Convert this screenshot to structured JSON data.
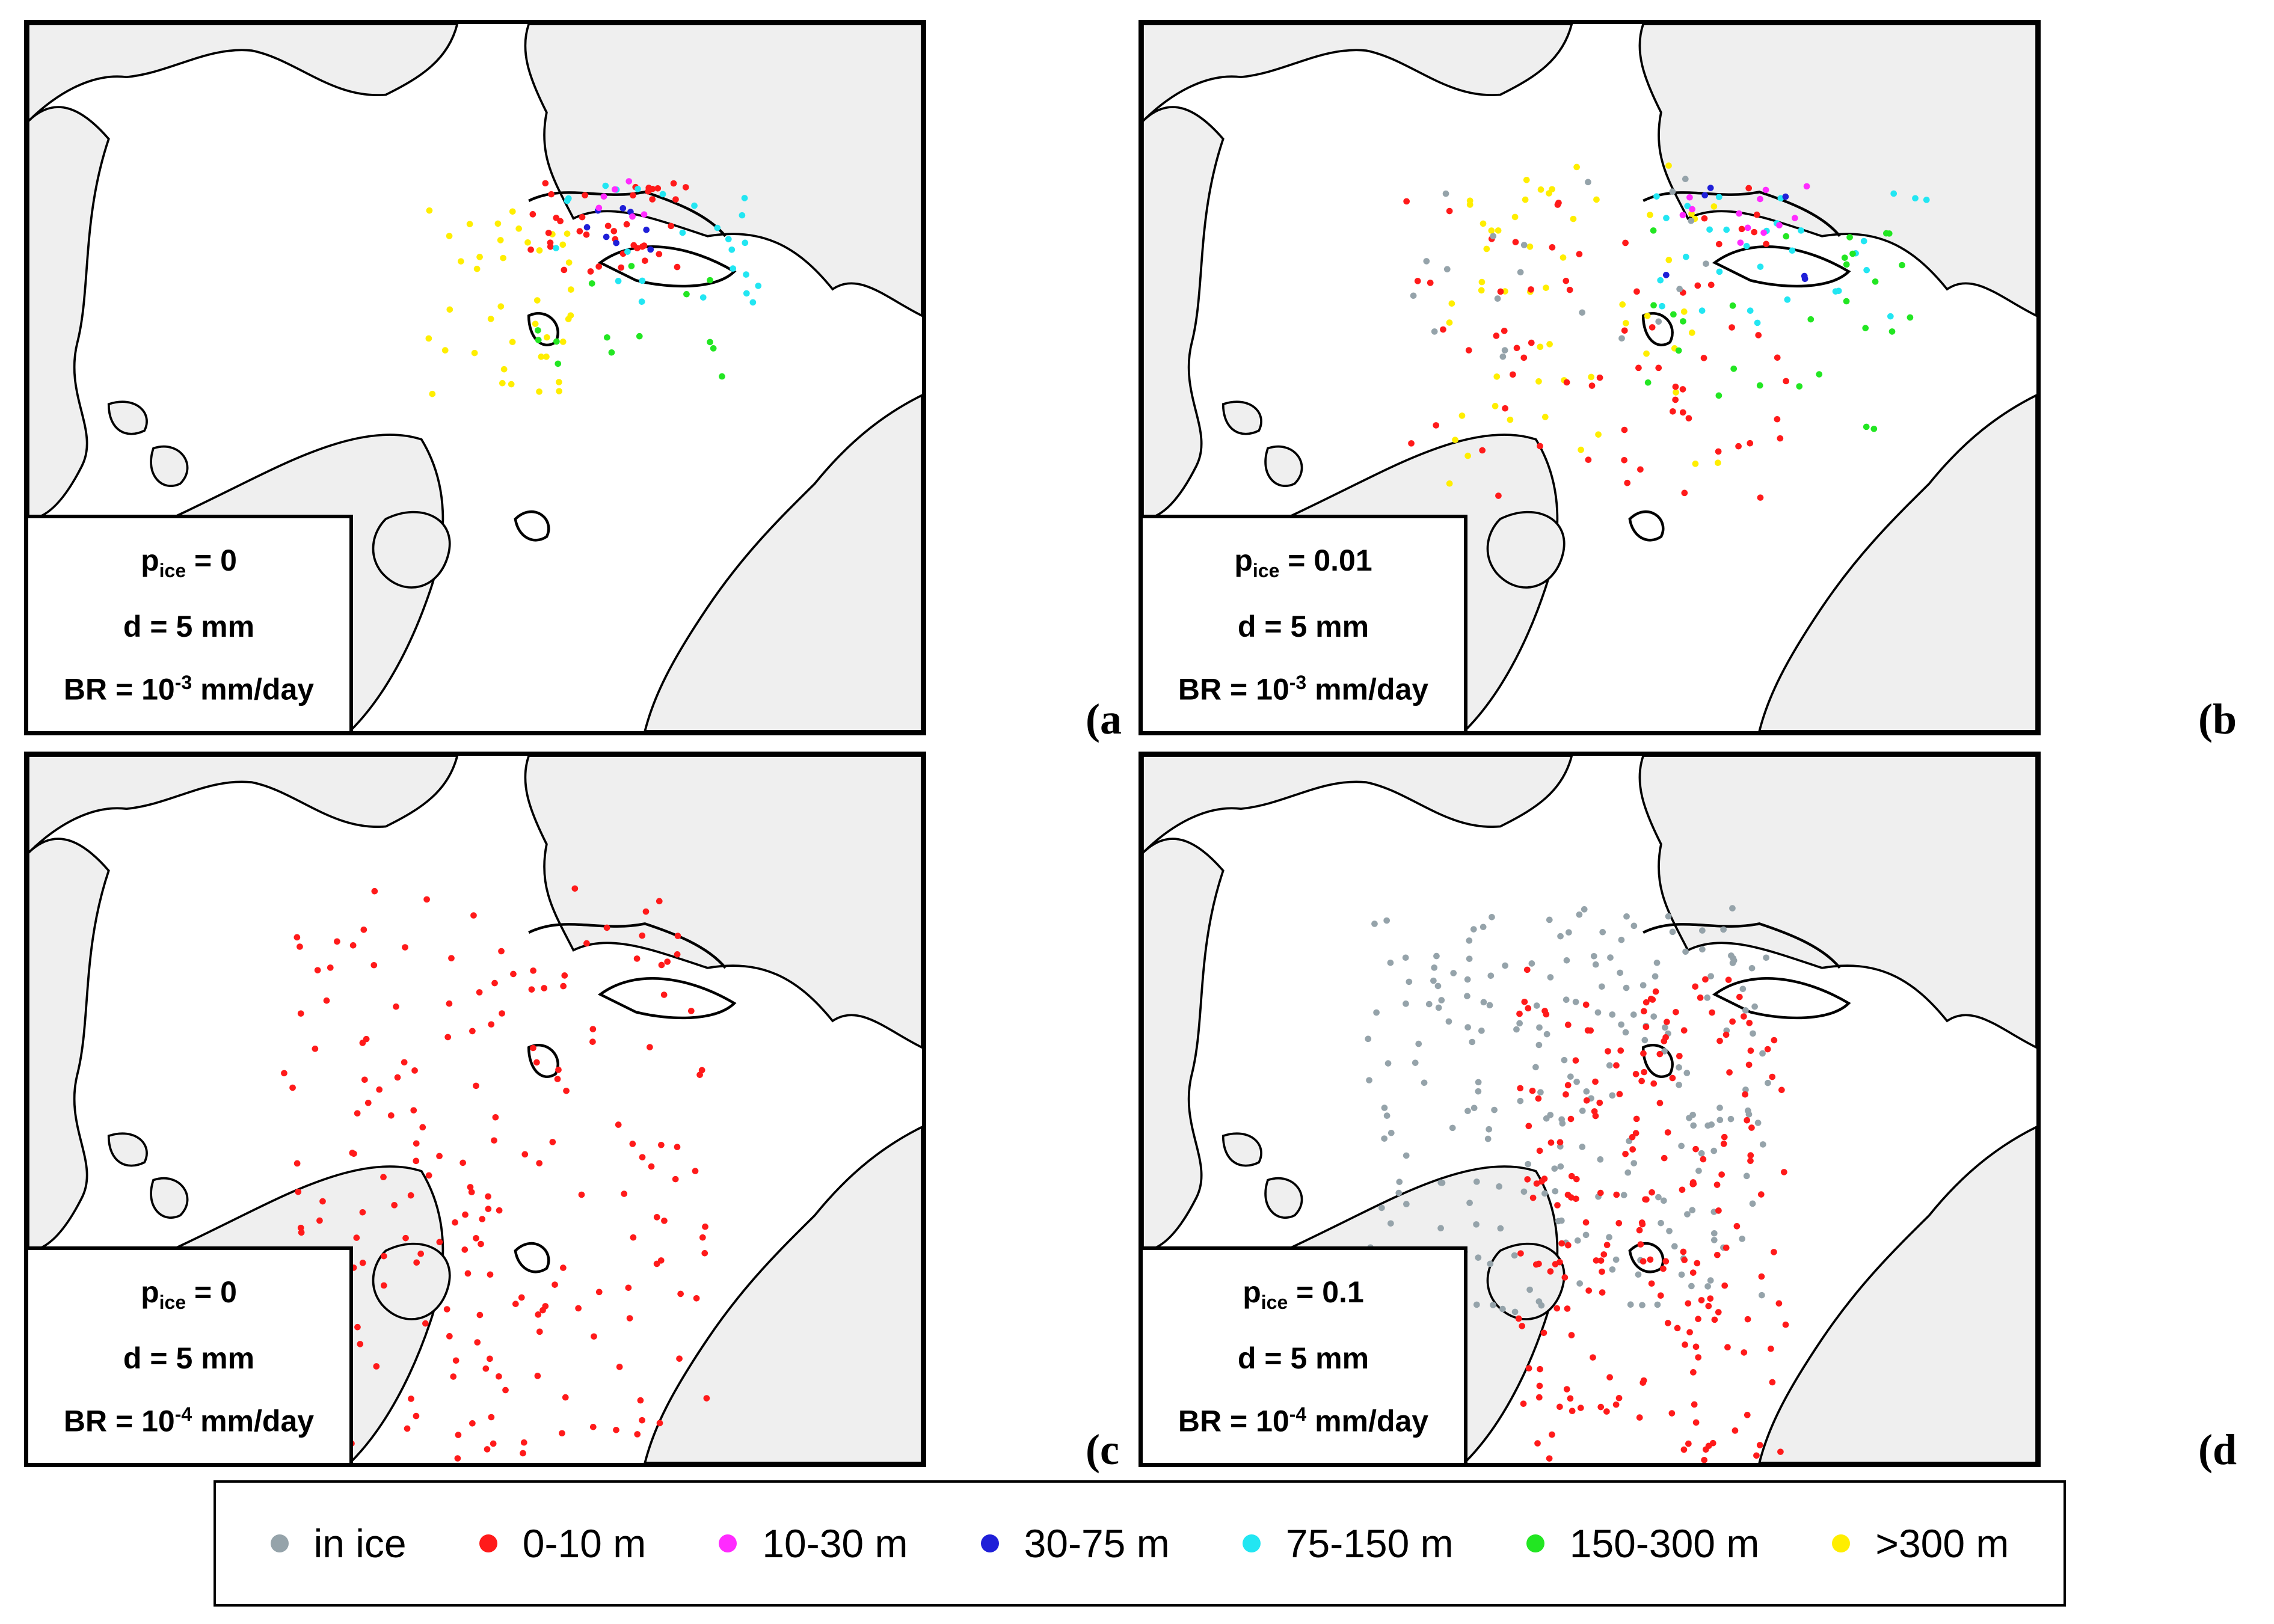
{
  "colors": {
    "in_ice": "#95a3aa",
    "c0_10": "#ff1a1a",
    "c10_30": "#ff2bff",
    "c30_75": "#1f1fd8",
    "c75_150": "#22e6f2",
    "c150_300": "#22e622",
    "c300": "#ffee00",
    "land": "#efefef",
    "coast": "#000000"
  },
  "panels": [
    {
      "id": "a",
      "label": "(a",
      "p_prefix": "p",
      "p_sub": "ice",
      "p_value": " = 0",
      "d": "d = 5 mm",
      "br_prefix": "BR = 10",
      "br_exp": "-3",
      "br_suffix": " mm/day"
    },
    {
      "id": "b",
      "label": "(b",
      "p_prefix": "p",
      "p_sub": "ice",
      "p_value": " = 0.01",
      "d": "d = 5 mm",
      "br_prefix": "BR = 10",
      "br_exp": "-3",
      "br_suffix": " mm/day"
    },
    {
      "id": "c",
      "label": "(c",
      "p_prefix": "p",
      "p_sub": "ice",
      "p_value": " = 0",
      "d": "d = 5 mm",
      "br_prefix": "BR = 10",
      "br_exp": "-4",
      "br_suffix": " mm/day"
    },
    {
      "id": "d",
      "label": "(d",
      "p_prefix": "p",
      "p_sub": "ice",
      "p_value": " = 0.1",
      "d": "d = 5 mm",
      "br_prefix": "BR = 10",
      "br_exp": "-4",
      "br_suffix": " mm/day"
    }
  ],
  "legend": [
    {
      "label": "in ice",
      "color_key": "in_ice"
    },
    {
      "label": "0-10 m",
      "color_key": "c0_10"
    },
    {
      "label": "10-30 m",
      "color_key": "c10_30"
    },
    {
      "label": "30-75 m",
      "color_key": "c30_75"
    },
    {
      "label": "75-150 m",
      "color_key": "c75_150"
    },
    {
      "label": "150-300 m",
      "color_key": "c150_300"
    },
    {
      "label": ">300 m",
      "color_key": "c300"
    }
  ]
}
